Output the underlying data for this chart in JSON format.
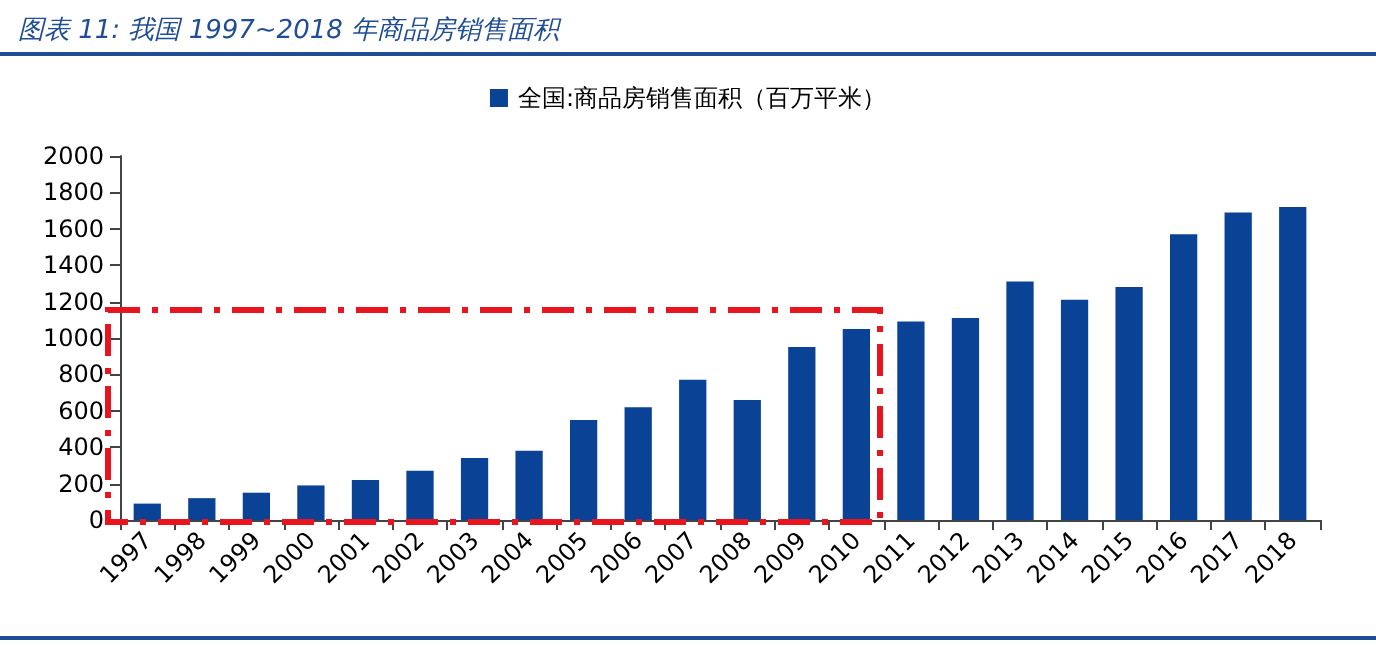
{
  "chart_data": {
    "type": "bar",
    "title": "图表 11: 我国 1997~2018 年商品房销售面积",
    "categories": [
      "1997",
      "1998",
      "1999",
      "2000",
      "2001",
      "2002",
      "2003",
      "2004",
      "2005",
      "2006",
      "2007",
      "2008",
      "2009",
      "2010",
      "2011",
      "2012",
      "2013",
      "2014",
      "2015",
      "2016",
      "2017",
      "2018"
    ],
    "series": [
      {
        "name": "全国:商品房销售面积（百万平米）",
        "color": "#0a4396",
        "values": [
          90,
          120,
          150,
          190,
          220,
          270,
          340,
          380,
          550,
          620,
          770,
          660,
          950,
          1050,
          1090,
          1110,
          1310,
          1210,
          1280,
          1570,
          1690,
          1720
        ]
      }
    ],
    "ylim": [
      0,
      2000
    ],
    "yticks": [
      0,
      200,
      400,
      600,
      800,
      1000,
      1200,
      1400,
      1600,
      1800,
      2000
    ],
    "grid": false,
    "legend": "top"
  }
}
